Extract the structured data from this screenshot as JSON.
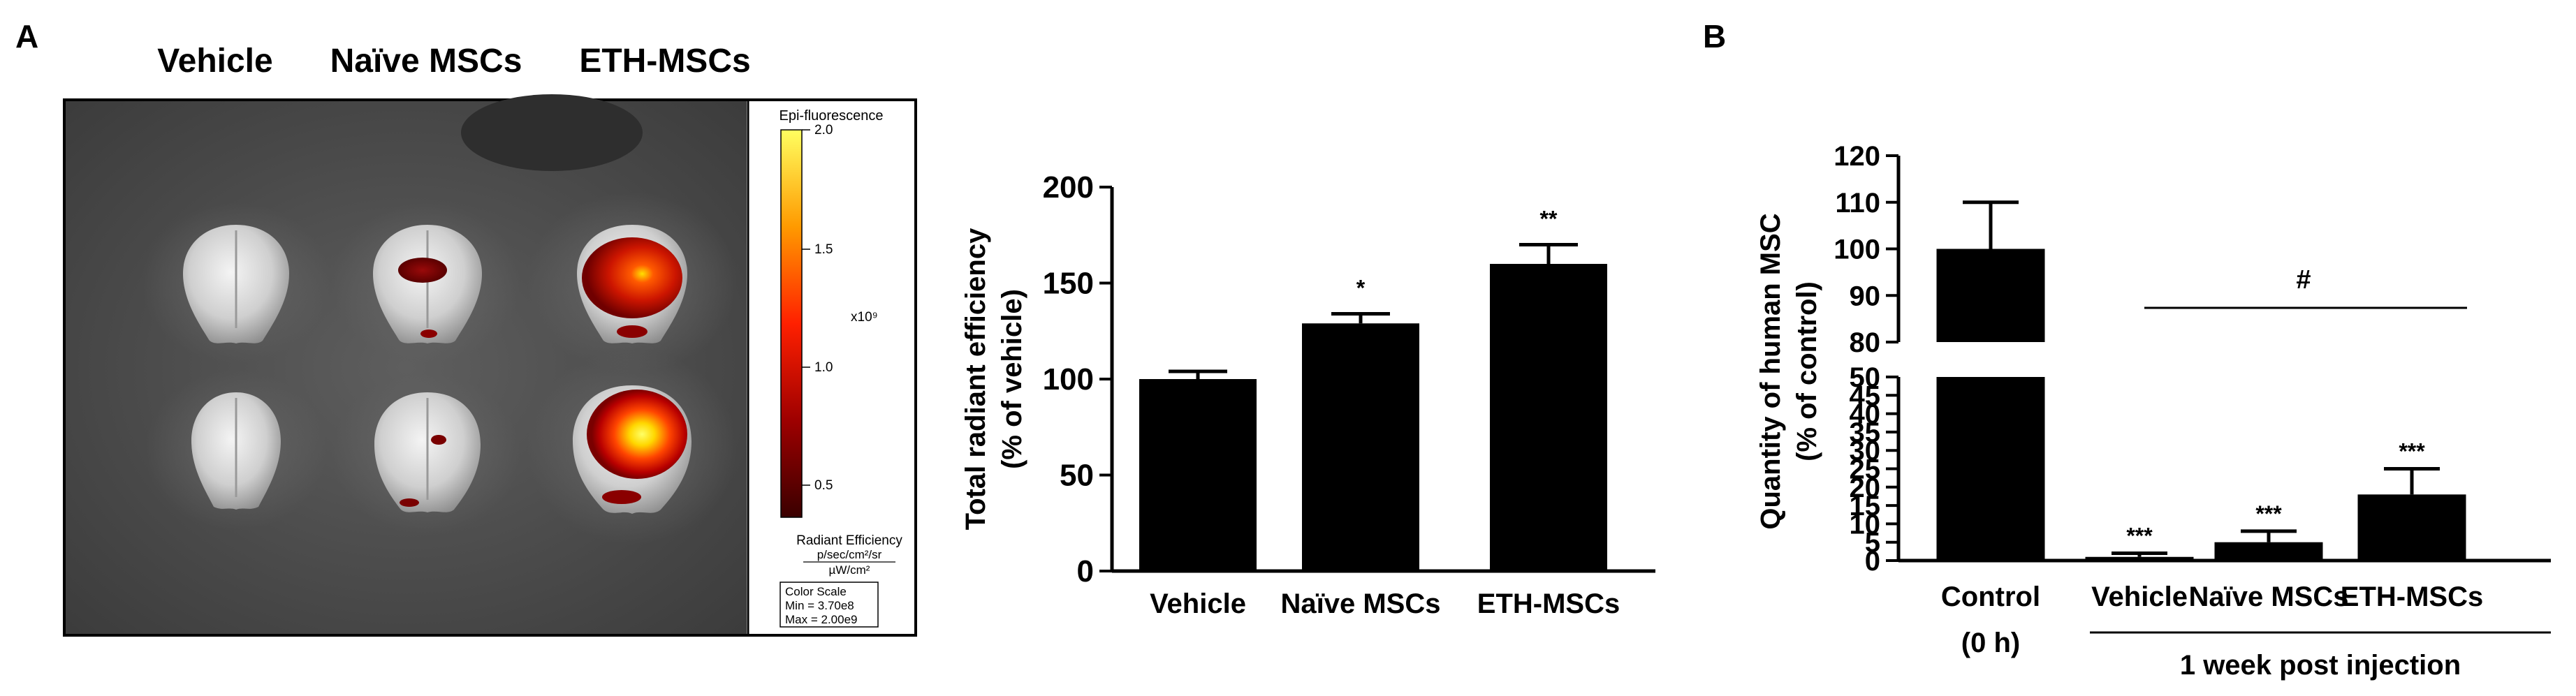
{
  "panel_labels": {
    "a": "A",
    "b": "B"
  },
  "image_panel": {
    "column_labels": [
      "Vehicle",
      "Naïve MSCs",
      "ETH-MSCs"
    ],
    "colorbar": {
      "title": "Epi-fluorescence",
      "ticks": [
        "2.0",
        "1.5",
        "1.0",
        "0.5"
      ],
      "multiplier": "x10⁹",
      "unit_title": "Radiant Efficiency",
      "unit_numer": "p/sec/cm²/sr",
      "unit_denom": "µW/cm²",
      "scale_title": "Color Scale",
      "scale_min": "Min = 3.70e8",
      "scale_max": "Max = 2.00e9"
    }
  },
  "chart_data": [
    {
      "type": "bar",
      "categories": [
        "Vehicle",
        "Naïve MSCs",
        "ETH-MSCs"
      ],
      "values": [
        100,
        129,
        160
      ],
      "errors": [
        4,
        5,
        10
      ],
      "significance": [
        "",
        "*",
        "**"
      ],
      "ylabel_line1": "Total radiant efficiency",
      "ylabel_line2": "(% of vehicle)",
      "ylim": [
        0,
        200
      ],
      "yticks": [
        0,
        50,
        100,
        150,
        200
      ],
      "grid": false,
      "color": "#000000"
    },
    {
      "type": "bar",
      "categories": [
        "Control",
        "Vehicle",
        "Naïve MSCs",
        "ETH-MSCs"
      ],
      "category_sublabels": [
        "(0 h)",
        "",
        "",
        ""
      ],
      "values": [
        100,
        1,
        5,
        18
      ],
      "errors": [
        10,
        1,
        3,
        7
      ],
      "significance": [
        "",
        "***",
        "***",
        "***"
      ],
      "ylabel_line1": "Quantity of human MSC",
      "ylabel_line2": "(% of control)",
      "ylim": [
        0,
        120
      ],
      "axis_break": [
        50,
        80
      ],
      "yticks_lower": [
        0,
        5,
        10,
        15,
        20,
        25,
        30,
        35,
        40,
        45,
        50
      ],
      "yticks_upper": [
        80,
        90,
        100,
        110,
        120
      ],
      "group_label": "1 week post injection",
      "comparison_symbol": "#",
      "grid": false,
      "color": "#000000"
    }
  ]
}
